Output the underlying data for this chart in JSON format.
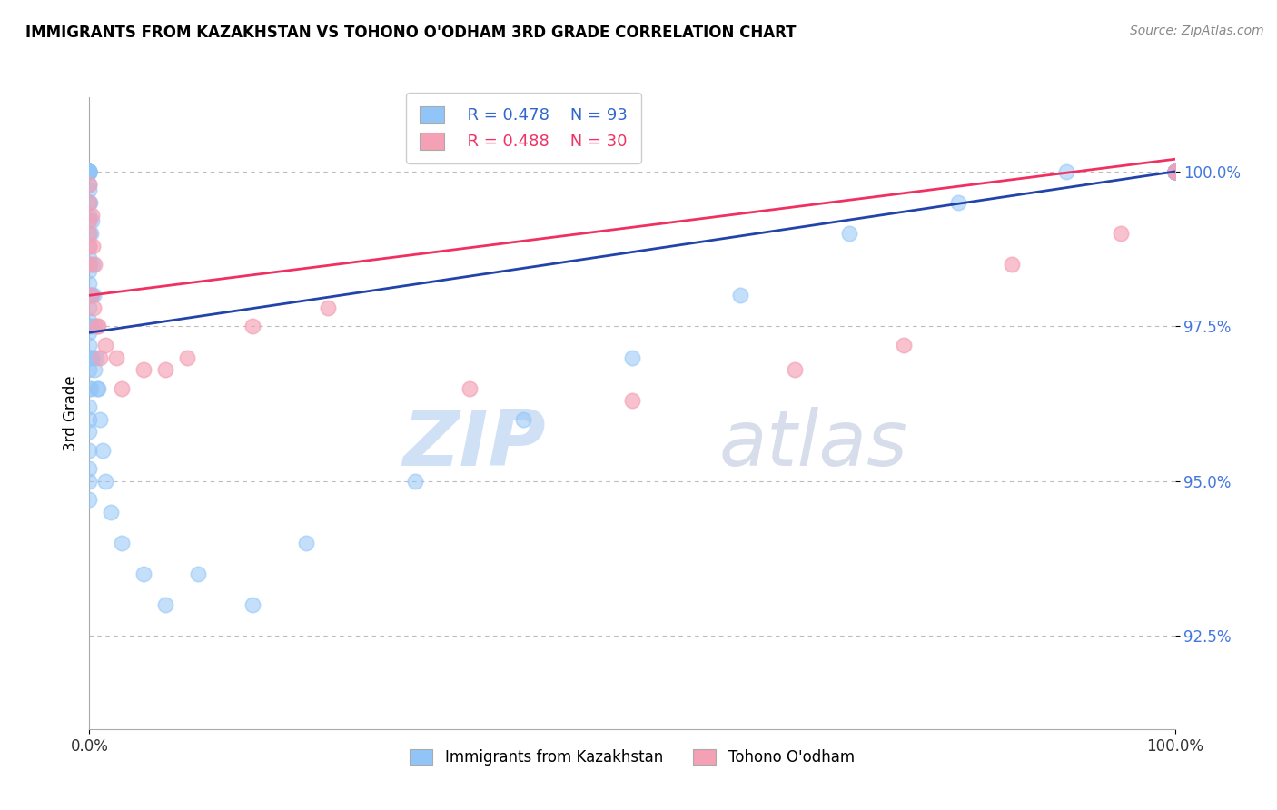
{
  "title": "IMMIGRANTS FROM KAZAKHSTAN VS TOHONO O'ODHAM 3RD GRADE CORRELATION CHART",
  "source": "Source: ZipAtlas.com",
  "ylabel": "3rd Grade",
  "ytick_values": [
    92.5,
    95.0,
    97.5,
    100.0
  ],
  "xlim": [
    0.0,
    100.0
  ],
  "ylim": [
    91.0,
    101.2
  ],
  "legend_r_blue": "R = 0.478",
  "legend_n_blue": "N = 93",
  "legend_r_pink": "R = 0.488",
  "legend_n_pink": "N = 30",
  "blue_color": "#92C5F7",
  "pink_color": "#F4A0B5",
  "blue_line_color": "#2244AA",
  "pink_line_color": "#F03060",
  "watermark_zip": "ZIP",
  "watermark_atlas": "atlas",
  "blue_scatter_x": [
    0.0,
    0.0,
    0.0,
    0.0,
    0.0,
    0.0,
    0.0,
    0.0,
    0.0,
    0.0,
    0.0,
    0.0,
    0.0,
    0.0,
    0.0,
    0.0,
    0.0,
    0.0,
    0.0,
    0.0,
    0.0,
    0.0,
    0.0,
    0.0,
    0.0,
    0.0,
    0.0,
    0.0,
    0.0,
    0.0,
    0.0,
    0.0,
    0.0,
    0.0,
    0.0,
    0.05,
    0.05,
    0.05,
    0.1,
    0.1,
    0.1,
    0.1,
    0.1,
    0.2,
    0.2,
    0.3,
    0.3,
    0.4,
    0.5,
    0.5,
    0.6,
    0.7,
    0.8,
    1.0,
    1.2,
    1.5,
    2.0,
    3.0,
    5.0,
    7.0,
    10.0,
    15.0,
    20.0,
    30.0,
    40.0,
    50.0,
    60.0,
    70.0,
    80.0,
    90.0,
    100.0,
    100.0,
    100.0,
    100.0,
    100.0,
    100.0,
    100.0,
    100.0,
    100.0,
    100.0,
    100.0,
    100.0,
    100.0,
    100.0,
    100.0,
    100.0,
    100.0,
    100.0,
    100.0,
    100.0,
    100.0,
    100.0,
    100.0
  ],
  "blue_scatter_y": [
    100.0,
    100.0,
    100.0,
    100.0,
    100.0,
    100.0,
    100.0,
    100.0,
    100.0,
    100.0,
    99.8,
    99.7,
    99.5,
    99.3,
    99.2,
    99.0,
    98.8,
    98.6,
    98.4,
    98.2,
    98.0,
    97.8,
    97.6,
    97.4,
    97.2,
    97.0,
    96.8,
    96.5,
    96.2,
    96.0,
    95.8,
    95.5,
    95.2,
    95.0,
    94.7,
    99.5,
    98.5,
    97.5,
    99.0,
    98.0,
    97.5,
    97.0,
    96.5,
    99.2,
    98.0,
    98.5,
    97.0,
    98.0,
    97.5,
    96.8,
    97.0,
    96.5,
    96.5,
    96.0,
    95.5,
    95.0,
    94.5,
    94.0,
    93.5,
    93.0,
    93.5,
    93.0,
    94.0,
    95.0,
    96.0,
    97.0,
    98.0,
    99.0,
    99.5,
    100.0,
    100.0,
    100.0,
    100.0,
    100.0,
    100.0,
    100.0,
    100.0,
    100.0,
    100.0,
    100.0,
    100.0,
    100.0,
    100.0,
    100.0,
    100.0,
    100.0,
    100.0,
    100.0,
    100.0,
    100.0,
    100.0,
    100.0,
    100.0
  ],
  "pink_scatter_x": [
    0.0,
    0.0,
    0.0,
    0.0,
    0.0,
    0.0,
    0.2,
    0.3,
    0.5,
    0.8,
    1.5,
    2.5,
    5.0,
    9.0,
    15.0,
    22.0,
    35.0,
    50.0,
    65.0,
    75.0,
    85.0,
    95.0,
    100.0,
    100.0,
    0.1,
    0.4,
    0.7,
    1.0,
    3.0,
    7.0
  ],
  "pink_scatter_y": [
    99.8,
    99.5,
    99.2,
    99.0,
    98.8,
    98.5,
    99.3,
    98.8,
    98.5,
    97.5,
    97.2,
    97.0,
    96.8,
    97.0,
    97.5,
    97.8,
    96.5,
    96.3,
    96.8,
    97.2,
    98.5,
    99.0,
    100.0,
    100.0,
    98.0,
    97.8,
    97.5,
    97.0,
    96.5,
    96.8
  ],
  "blue_line_x0": 0.0,
  "blue_line_x1": 100.0,
  "blue_line_y0": 97.4,
  "blue_line_y1": 100.0,
  "pink_line_x0": 0.0,
  "pink_line_x1": 100.0,
  "pink_line_y0": 98.0,
  "pink_line_y1": 100.2
}
